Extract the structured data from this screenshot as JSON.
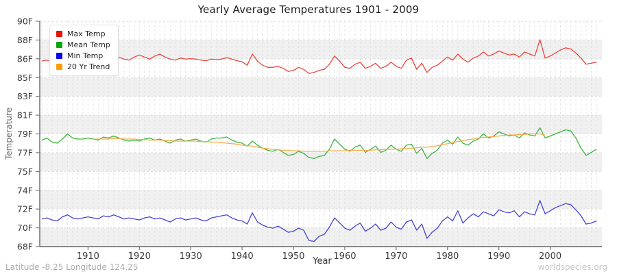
{
  "chart": {
    "title": "Yearly Average Temperatures 1901 - 2009",
    "y_axis_title": "Temperature",
    "x_axis_title": "Year",
    "footer_left": "Latitude -8.25 Longitude 124.25",
    "footer_right": "worldspecies.org"
  },
  "legend": {
    "position": "top-left",
    "items": [
      {
        "label": "Max Temp",
        "color": "#e81309"
      },
      {
        "label": "Mean Temp",
        "color": "#0aa30a"
      },
      {
        "label": "Min Temp",
        "color": "#0a0ae8"
      },
      {
        "label": "20 Yr Trend",
        "color": "#ff9d09"
      }
    ]
  },
  "chart_data": {
    "type": "line",
    "title": "Yearly Average Temperatures 1901 - 2009",
    "xlabel": "Year",
    "ylabel": "Temperature",
    "x_start": 1901,
    "x_end": 2009,
    "x_ticks": [
      1910,
      1920,
      1930,
      1940,
      1950,
      1960,
      1970,
      1980,
      1990,
      2000
    ],
    "y_tick_labels": [
      "90F",
      "88F",
      "86F",
      "85F",
      "83F",
      "81F",
      "79F",
      "77F",
      "75F",
      "74F",
      "72F",
      "70F",
      "68F"
    ],
    "ylim": [
      68,
      90
    ],
    "grid": "alternating horizontal bands with dashed yearly gridlines",
    "legend_position": "top-left",
    "series": [
      {
        "name": "Max Temp",
        "color": "#ed453c",
        "start_year": 1901,
        "values": [
          86.1,
          86.2,
          86.0,
          85.9,
          86.2,
          86.5,
          86.3,
          86.2,
          86.1,
          86.2,
          86.1,
          86.0,
          86.2,
          86.6,
          86.8,
          86.5,
          86.3,
          86.2,
          86.5,
          86.7,
          86.5,
          86.3,
          86.6,
          86.8,
          86.5,
          86.3,
          86.2,
          86.4,
          86.3,
          86.35,
          86.3,
          86.2,
          86.15,
          86.3,
          86.25,
          86.3,
          86.45,
          86.3,
          86.15,
          86.05,
          85.7,
          86.8,
          86.1,
          85.7,
          85.5,
          85.5,
          85.6,
          85.4,
          85.1,
          85.2,
          85.5,
          85.3,
          84.9,
          85.0,
          85.2,
          85.3,
          85.8,
          86.6,
          86.1,
          85.5,
          85.4,
          85.8,
          86.0,
          85.4,
          85.6,
          85.9,
          85.4,
          85.6,
          86.0,
          85.6,
          85.4,
          86.2,
          86.4,
          85.3,
          85.9,
          85.0,
          85.5,
          85.7,
          86.1,
          86.5,
          86.2,
          86.8,
          86.3,
          86.0,
          86.4,
          86.6,
          87.0,
          86.6,
          86.8,
          87.1,
          86.9,
          86.7,
          86.8,
          86.5,
          87.0,
          86.8,
          86.6,
          88.2,
          86.4,
          86.6,
          86.9,
          87.2,
          87.4,
          87.3,
          86.9,
          86.4,
          85.8,
          85.9,
          86.0
        ]
      },
      {
        "name": "Mean Temp",
        "color": "#3db53d",
        "start_year": 1901,
        "values": [
          78.4,
          78.6,
          78.2,
          78.1,
          78.5,
          79.0,
          78.6,
          78.5,
          78.5,
          78.6,
          78.5,
          78.4,
          78.7,
          78.6,
          78.8,
          78.6,
          78.4,
          78.3,
          78.4,
          78.3,
          78.5,
          78.6,
          78.4,
          78.5,
          78.3,
          78.1,
          78.4,
          78.5,
          78.3,
          78.4,
          78.5,
          78.3,
          78.2,
          78.5,
          78.6,
          78.6,
          78.7,
          78.4,
          78.2,
          78.1,
          77.8,
          78.3,
          77.9,
          77.6,
          77.4,
          77.3,
          77.5,
          77.2,
          76.9,
          77.0,
          77.3,
          77.1,
          76.7,
          76.6,
          76.8,
          76.9,
          77.5,
          78.5,
          78.0,
          77.5,
          77.3,
          77.7,
          77.9,
          77.2,
          77.5,
          77.8,
          77.2,
          77.4,
          77.9,
          77.5,
          77.3,
          77.9,
          78.0,
          77.1,
          77.6,
          76.6,
          77.1,
          77.4,
          78.1,
          78.4,
          78.0,
          78.7,
          78.1,
          77.9,
          78.3,
          78.5,
          79.0,
          78.6,
          78.8,
          79.2,
          79.0,
          78.8,
          78.9,
          78.6,
          79.1,
          78.9,
          78.8,
          79.6,
          78.6,
          78.8,
          79.0,
          79.2,
          79.4,
          79.3,
          78.6,
          77.6,
          76.9,
          77.2,
          77.5
        ]
      },
      {
        "name": "Min Temp",
        "color": "#4444d6",
        "start_year": 1901,
        "values": [
          70.7,
          70.8,
          70.6,
          70.5,
          70.9,
          71.1,
          70.8,
          70.7,
          70.8,
          70.9,
          70.8,
          70.7,
          71.0,
          70.9,
          71.1,
          70.9,
          70.7,
          70.8,
          70.7,
          70.6,
          70.8,
          70.9,
          70.7,
          70.8,
          70.6,
          70.4,
          70.7,
          70.8,
          70.6,
          70.7,
          70.8,
          70.6,
          70.5,
          70.8,
          70.9,
          71.0,
          71.1,
          70.8,
          70.6,
          70.5,
          70.2,
          71.3,
          70.4,
          70.1,
          69.9,
          69.8,
          70.0,
          69.7,
          69.4,
          69.5,
          69.8,
          69.6,
          68.6,
          68.5,
          69.0,
          69.2,
          69.9,
          70.8,
          70.3,
          69.8,
          69.6,
          70.0,
          70.3,
          69.5,
          69.8,
          70.2,
          69.6,
          69.8,
          70.4,
          69.9,
          69.7,
          70.4,
          70.6,
          69.6,
          70.2,
          68.8,
          69.4,
          69.8,
          70.5,
          70.9,
          70.5,
          71.5,
          70.3,
          70.8,
          71.2,
          70.9,
          71.4,
          71.2,
          71.0,
          71.6,
          71.4,
          71.3,
          71.5,
          70.9,
          71.4,
          71.2,
          71.1,
          72.5,
          71.2,
          71.5,
          71.8,
          72.0,
          72.2,
          72.1,
          71.6,
          71.0,
          70.2,
          70.3,
          70.5
        ]
      },
      {
        "name": "20 Yr Trend",
        "color": "#f9ab4b",
        "start_year": 1911,
        "values": [
          78.5,
          78.5,
          78.5,
          78.5,
          78.55,
          78.55,
          78.5,
          78.5,
          78.5,
          78.45,
          78.45,
          78.4,
          78.4,
          78.4,
          78.35,
          78.35,
          78.3,
          78.3,
          78.3,
          78.3,
          78.3,
          78.25,
          78.25,
          78.2,
          78.2,
          78.15,
          78.1,
          78.05,
          78.0,
          77.9,
          77.85,
          77.8,
          77.7,
          77.6,
          77.55,
          77.5,
          77.45,
          77.4,
          77.4,
          77.35,
          77.35,
          77.3,
          77.3,
          77.3,
          77.3,
          77.3,
          77.35,
          77.35,
          77.35,
          77.35,
          77.4,
          77.4,
          77.4,
          77.4,
          77.4,
          77.45,
          77.45,
          77.5,
          77.5,
          77.5,
          77.55,
          77.6,
          77.6,
          77.65,
          77.7,
          77.7,
          77.75,
          77.85,
          77.95,
          78.05,
          78.15,
          78.25,
          78.35,
          78.45,
          78.5,
          78.6,
          78.65,
          78.7,
          78.75,
          78.8,
          78.85,
          78.9,
          78.9,
          78.95,
          78.95,
          79.0,
          79.0,
          79.0,
          78.9
        ]
      }
    ]
  }
}
